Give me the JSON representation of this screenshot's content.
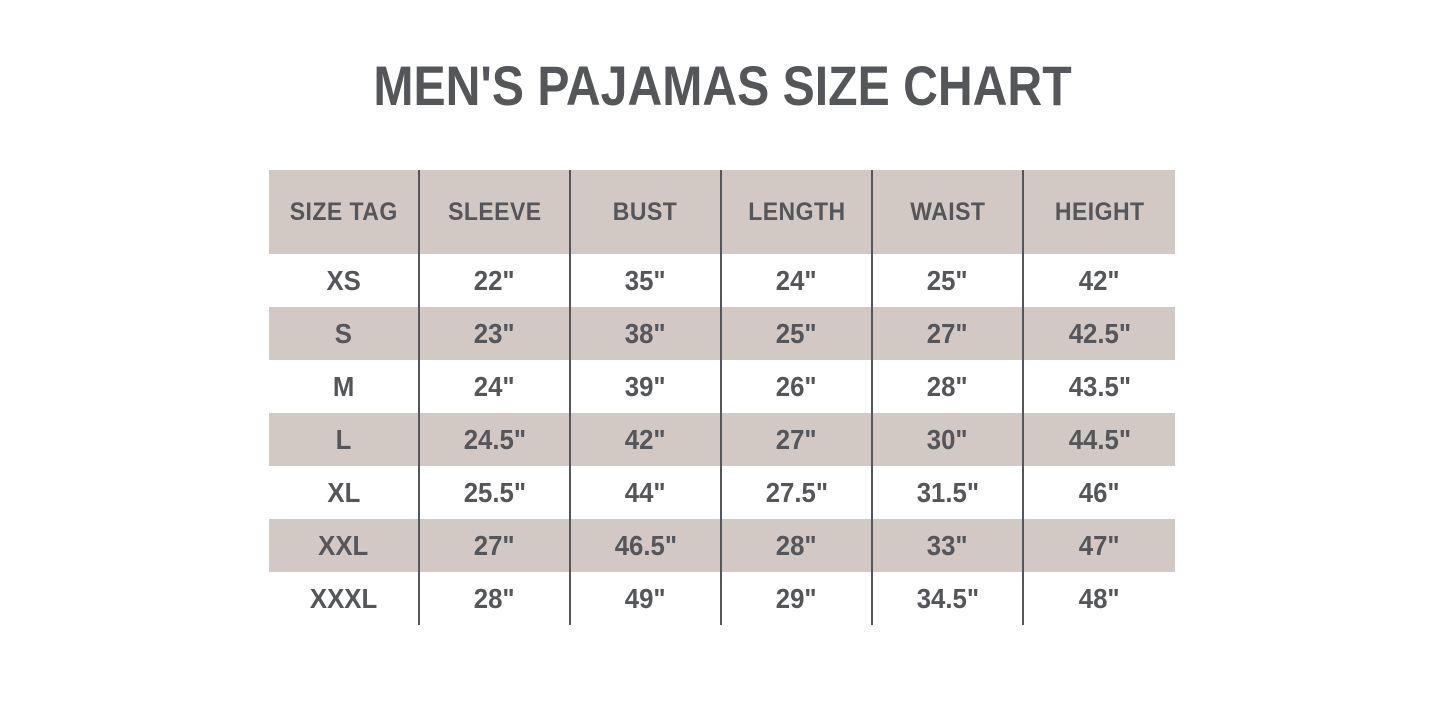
{
  "title": "MEN'S PAJAMAS SIZE CHART",
  "colors": {
    "accent_bg": "#d2c9c4",
    "text": "#54565a",
    "divider": "#54565a",
    "page_bg": "#ffffff"
  },
  "chart_data": {
    "type": "table",
    "title": "MEN'S PAJAMAS SIZE CHART",
    "columns": [
      "SIZE TAG",
      "SLEEVE",
      "BUST",
      "LENGTH",
      "WAIST",
      "HEIGHT"
    ],
    "rows": [
      [
        "XS",
        "22\"",
        "35\"",
        "24\"",
        "25\"",
        "42\""
      ],
      [
        "S",
        "23\"",
        "38\"",
        "25\"",
        "27\"",
        "42.5\""
      ],
      [
        "M",
        "24\"",
        "39\"",
        "26\"",
        "28\"",
        "43.5\""
      ],
      [
        "L",
        "24.5\"",
        "42\"",
        "27\"",
        "30\"",
        "44.5\""
      ],
      [
        "XL",
        "25.5\"",
        "44\"",
        "27.5\"",
        "31.5\"",
        "46\""
      ],
      [
        "XXL",
        "27\"",
        "46.5\"",
        "28\"",
        "33\"",
        "47\""
      ],
      [
        "XXXL",
        "28\"",
        "49\"",
        "29\"",
        "34.5\"",
        "48\""
      ]
    ],
    "layout": {
      "shaded_rows": [
        1,
        3,
        5
      ],
      "header_shaded": true,
      "grid": "vertical-dividers-only",
      "legend_position": "none"
    }
  }
}
